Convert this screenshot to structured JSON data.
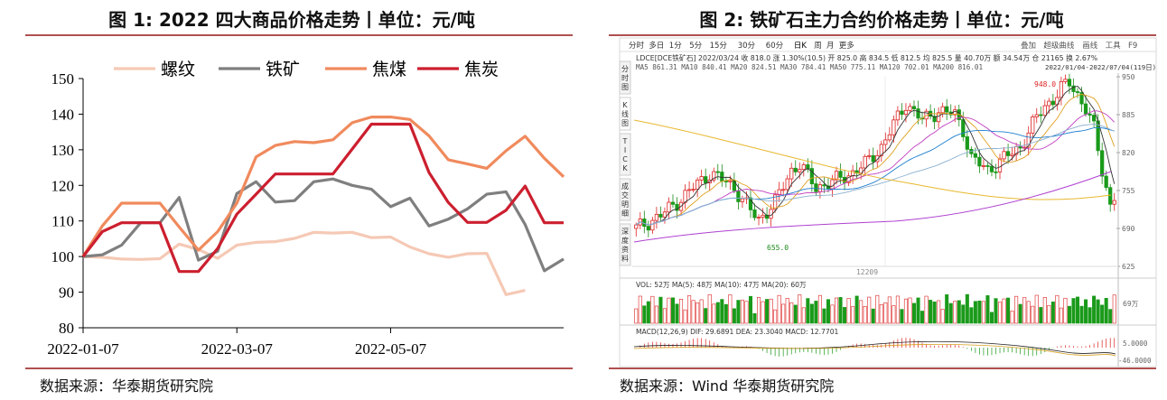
{
  "chart_data": [
    {
      "type": "line",
      "title": "图 1: 2022 四大商品价格走势丨单位：元/吨",
      "source": "数据来源：华泰期货研究院",
      "ylim": [
        80,
        150
      ],
      "yticks": [
        80,
        90,
        100,
        110,
        120,
        130,
        140,
        150
      ],
      "x_tick_labels": [
        "2022-01-07",
        "2022-03-07",
        "2022-05-07"
      ],
      "x_tick_index": [
        0,
        8,
        16
      ],
      "legend_position": "top",
      "grid": false,
      "series": [
        {
          "name": "螺纹",
          "color": "#f5c9b5",
          "values": [
            100,
            99.8,
            99.3,
            99.2,
            99.4,
            103.5,
            102,
            99.5,
            103.2,
            104,
            104.2,
            105.1,
            106.8,
            106.6,
            106.8,
            105.3,
            105.5,
            102.7,
            100.8,
            99.8,
            100.8,
            100.9,
            89.3,
            90.5
          ]
        },
        {
          "name": "铁矿",
          "color": "#7f7f7f",
          "values": [
            100,
            100.5,
            103.2,
            109.5,
            109.5,
            116.6,
            99,
            101.5,
            117.7,
            121,
            115.3,
            115.7,
            121,
            121.8,
            120,
            118.9,
            114,
            116.4,
            108.6,
            110.5,
            113.4,
            117.5,
            118.2,
            109,
            96,
            99.3
          ]
        },
        {
          "name": "焦煤",
          "color": "#f08a5d",
          "values": [
            100,
            108.6,
            115,
            115,
            115,
            108.3,
            101.8,
            107,
            115,
            128,
            131.2,
            132.3,
            132,
            132.8,
            137.6,
            139.2,
            139.2,
            138.5,
            133.9,
            127.2,
            126,
            124.8,
            129.7,
            133.8,
            127.6,
            122.4
          ]
        },
        {
          "name": "焦炭",
          "color": "#cc1f2f",
          "values": [
            100,
            107,
            109.5,
            109.5,
            109.5,
            95.8,
            95.8,
            102.3,
            111.9,
            117.5,
            123.2,
            123.2,
            123.2,
            123.2,
            130.2,
            137.2,
            137.2,
            137.2,
            123.6,
            115.2,
            109.6,
            109.6,
            113,
            119.8,
            109.5,
            109.5
          ]
        }
      ]
    },
    {
      "type": "line",
      "title": "图 2: 铁矿石主力合约价格走势丨单位：元/吨",
      "source": "数据来源：Wind 华泰期货研究院",
      "toolbar_left": [
        "分时",
        "多日",
        "1分",
        "5分",
        "15分",
        "30分",
        "60分",
        "日K",
        "周",
        "月",
        "更多"
      ],
      "toolbar_right": [
        "叠加",
        "超级曲线",
        "画线",
        "工具",
        "F9"
      ],
      "info_line": "LDCE[DCE铁矿石]  2022/03/24  收 818.0  涨 1.30%(10.5)  开 825.0  高 834.5  低 812.5  均 825.5  量 40.70万  额 34.54万  仓 21165  换 2.67%",
      "ma_line": "MA5 861.31  MA10 840.41  MA20 824.51  MA30 784.41  MA50 775.11  MA120 702.01  MA200 816.01",
      "date_range": "2022/01/04-2022/07/04(119日)",
      "side_tabs": [
        "分时图",
        "K线图",
        "TICK",
        "成交明细",
        "深度资料"
      ],
      "yticks": [
        625,
        690,
        755,
        820,
        885,
        950
      ],
      "x_label": "12209",
      "annotations": [
        "948.0",
        "655.0"
      ],
      "vol_label": "VOL: 52万  MA(5): 48万  MA(10): 47万  MA(20): 60万",
      "vol_axis": "69万",
      "macd_label": "MACD(12,26,9)  DIF: 29.6891  DEA: 23.3040  MACD: 12.7701",
      "macd_axis": [
        "5.0000",
        "-46.0000"
      ]
    }
  ]
}
